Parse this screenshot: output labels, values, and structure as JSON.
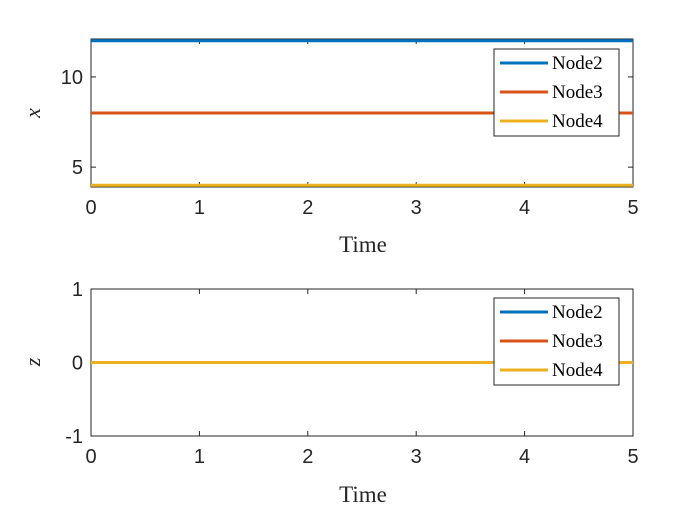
{
  "chart_data": [
    {
      "type": "line",
      "xlabel": "Time",
      "ylabel": "x",
      "xlim": [
        0,
        5
      ],
      "ylim": [
        3.9,
        12.1
      ],
      "xticks": [
        "0",
        "1",
        "2",
        "3",
        "4",
        "5"
      ],
      "yticks": [
        "5",
        "10"
      ],
      "ytick_values": [
        5,
        10
      ],
      "grid": false,
      "legend_position": "top-right",
      "series": [
        {
          "name": "Node2",
          "color": "#0072BD",
          "x": [
            0,
            5
          ],
          "y": [
            12,
            12
          ]
        },
        {
          "name": "Node3",
          "color": "#D95319",
          "x": [
            0,
            5
          ],
          "y": [
            8,
            8
          ]
        },
        {
          "name": "Node4",
          "color": "#EDB120",
          "x": [
            0,
            5
          ],
          "y": [
            4,
            4
          ]
        }
      ]
    },
    {
      "type": "line",
      "xlabel": "Time",
      "ylabel": "z",
      "xlim": [
        0,
        5
      ],
      "ylim": [
        -1,
        1
      ],
      "xticks": [
        "0",
        "1",
        "2",
        "3",
        "4",
        "5"
      ],
      "yticks": [
        "-1",
        "0",
        "1"
      ],
      "ytick_values": [
        -1,
        0,
        1
      ],
      "grid": false,
      "legend_position": "top-right",
      "series": [
        {
          "name": "Node2",
          "color": "#0072BD",
          "x": [
            0,
            5
          ],
          "y": [
            0,
            0
          ]
        },
        {
          "name": "Node3",
          "color": "#D95319",
          "x": [
            0,
            5
          ],
          "y": [
            0,
            0
          ]
        },
        {
          "name": "Node4",
          "color": "#EDB120",
          "x": [
            0,
            5
          ],
          "y": [
            0,
            0
          ]
        }
      ]
    }
  ]
}
